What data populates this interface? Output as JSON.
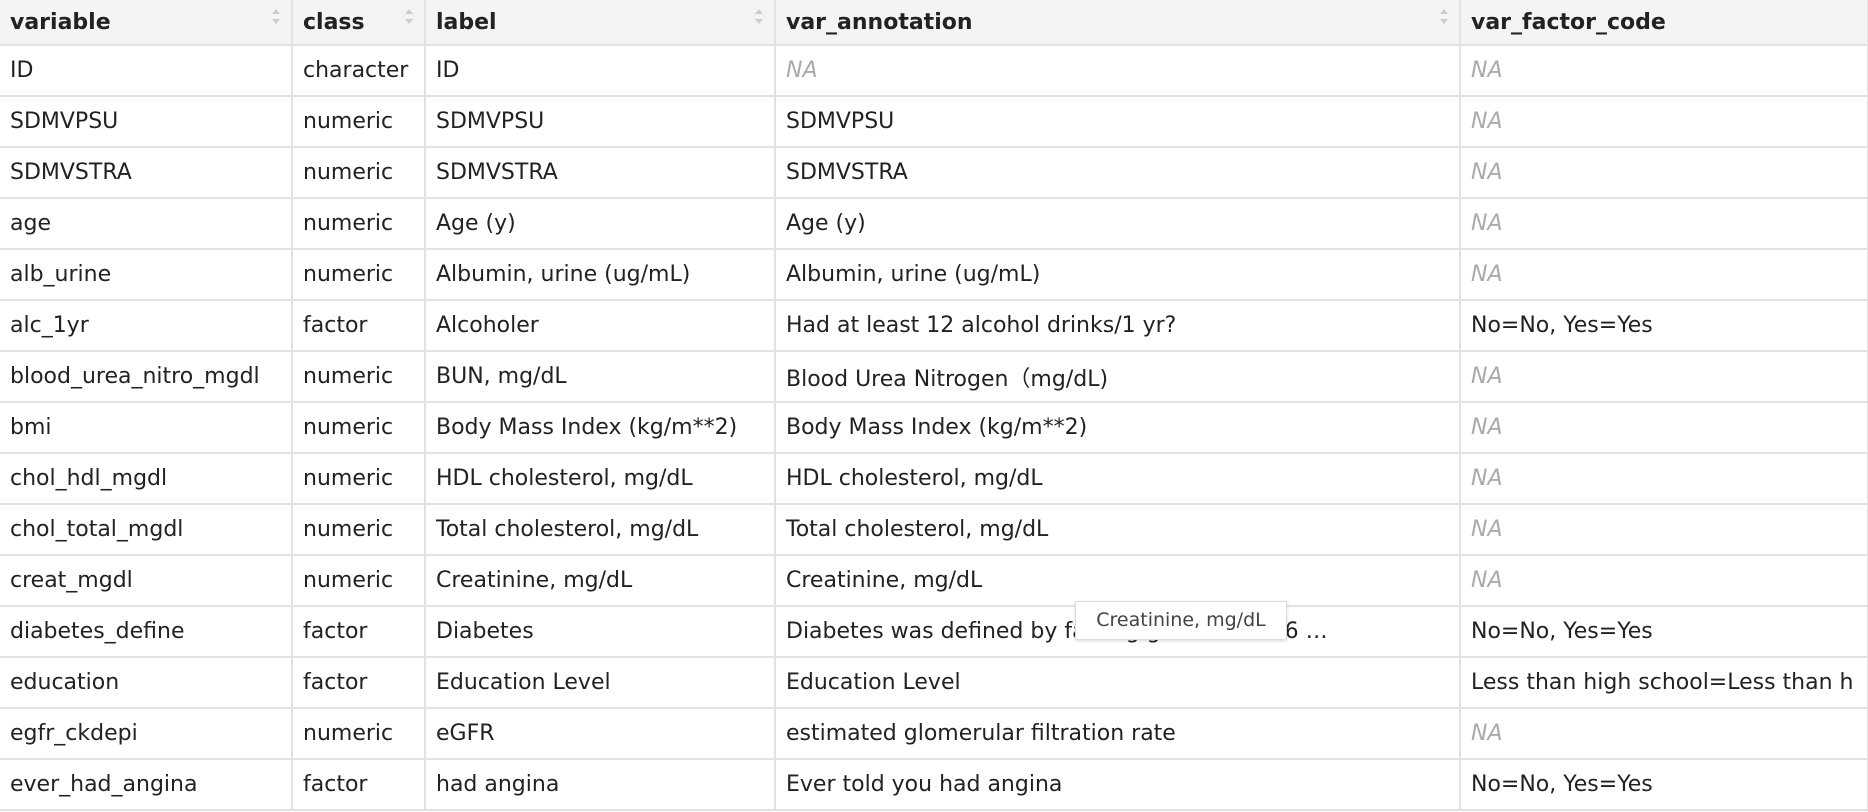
{
  "table": {
    "columns": [
      "variable",
      "class",
      "label",
      "var_annotation",
      "var_factor_code"
    ],
    "rows": [
      [
        "ID",
        "character",
        "ID",
        "NA",
        "NA"
      ],
      [
        "SDMVPSU",
        "numeric",
        "SDMVPSU",
        "SDMVPSU",
        "NA"
      ],
      [
        "SDMVSTRA",
        "numeric",
        "SDMVSTRA",
        "SDMVSTRA",
        "NA"
      ],
      [
        "age",
        "numeric",
        "Age (y)",
        "Age (y)",
        "NA"
      ],
      [
        "alb_urine",
        "numeric",
        "Albumin, urine (ug/mL)",
        "Albumin, urine (ug/mL)",
        "NA"
      ],
      [
        "alc_1yr",
        "factor",
        "Alcoholer",
        "Had at least 12 alcohol drinks/1 yr?",
        "No=No, Yes=Yes"
      ],
      [
        "blood_urea_nitro_mgdl",
        "numeric",
        "BUN, mg/dL",
        "Blood Urea Nitrogen（mg/dL)",
        "NA"
      ],
      [
        "bmi",
        "numeric",
        "Body Mass Index (kg/m**2)",
        "Body Mass Index (kg/m**2)",
        "NA"
      ],
      [
        "chol_hdl_mgdl",
        "numeric",
        "HDL cholesterol, mg/dL",
        "HDL cholesterol, mg/dL",
        "NA"
      ],
      [
        "chol_total_mgdl",
        "numeric",
        "Total cholesterol, mg/dL",
        "Total cholesterol, mg/dL",
        "NA"
      ],
      [
        "creat_mgdl",
        "numeric",
        "Creatinine, mg/dL",
        "Creatinine, mg/dL",
        "NA"
      ],
      [
        "diabetes_define",
        "factor",
        "Diabetes",
        "Diabetes was defined by fasting glucose ≥126 …",
        "No=No, Yes=Yes"
      ],
      [
        "education",
        "factor",
        "Education Level",
        "Education Level",
        "Less than high school=Less than h"
      ],
      [
        "egfr_ckdepi",
        "numeric",
        "eGFR",
        "estimated glomerular filtration rate",
        "NA"
      ],
      [
        "ever_had_angina",
        "factor",
        "had angina",
        "Ever told you had angina",
        "No=No, Yes=Yes"
      ]
    ]
  },
  "tooltip": "Creatinine, mg/dL"
}
